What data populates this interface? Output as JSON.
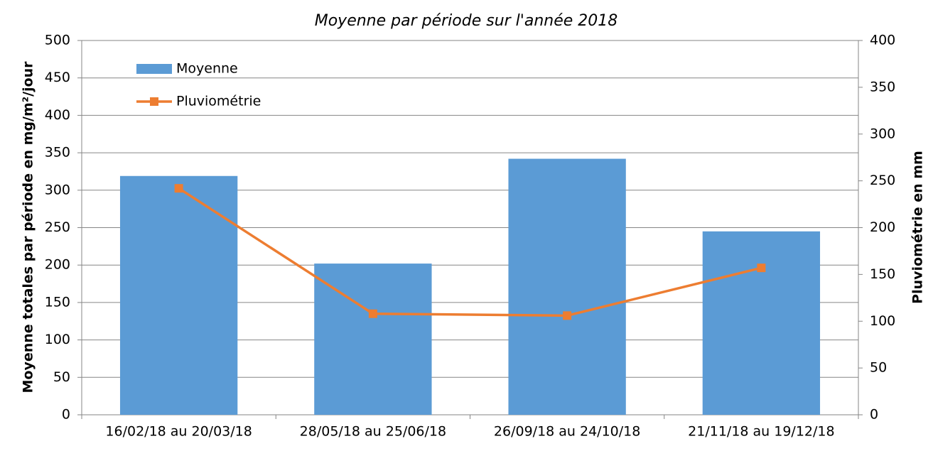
{
  "chart_data": {
    "type": "bar",
    "title": "Moyenne par période sur l'année 2018",
    "ylabel": "Moyenne totales par période en mg/m²/jour",
    "y2label": "Pluviométrie en mm",
    "categories": [
      "16/02/18 au 20/03/18",
      "28/05/18 au 25/06/18",
      "26/09/18 au 24/10/18",
      "21/11/18 au 19/12/18"
    ],
    "series": [
      {
        "name": "Moyenne",
        "color": "#5b9bd5",
        "values": [
          319,
          202,
          342,
          245
        ]
      },
      {
        "name": "Pluviométrie",
        "color": "#ed7d31",
        "axis": "y2",
        "values": [
          242,
          108,
          106,
          157
        ]
      }
    ],
    "ylim": [
      0,
      500
    ],
    "yticks": [
      0,
      50,
      100,
      150,
      200,
      250,
      300,
      350,
      400,
      450,
      500
    ],
    "y2lim": [
      0,
      400
    ],
    "y2ticks": [
      0,
      50,
      100,
      150,
      200,
      250,
      300,
      350,
      400
    ],
    "grid": true,
    "legend": "upper left"
  }
}
